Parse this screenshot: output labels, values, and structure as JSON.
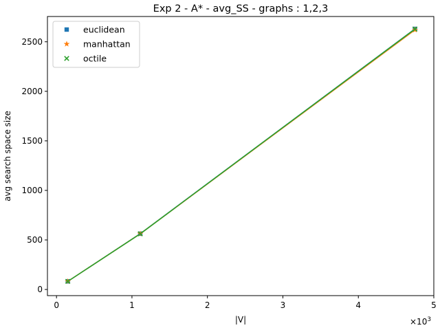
{
  "chart_data": {
    "type": "line",
    "title": "Exp 2 - A* - avg_SS - graphs : 1,2,3",
    "xlabel": "|V|",
    "ylabel": "avg search space size",
    "x_multiplier_label": "×10",
    "x_multiplier_exp": "3",
    "xlim": [
      -0.12,
      5.0
    ],
    "ylim": [
      -62,
      2755
    ],
    "xticks": [
      0,
      1,
      2,
      3,
      4,
      5
    ],
    "yticks": [
      0,
      500,
      1000,
      1500,
      2000,
      2500
    ],
    "grid": false,
    "legend_position": "top-left",
    "series": [
      {
        "name": "euclidean",
        "marker": "square",
        "color": "#1f77b4",
        "x": [
          0.15,
          1.11,
          4.75
        ],
        "y": [
          82,
          563,
          2630
        ]
      },
      {
        "name": "manhattan",
        "marker": "star",
        "color": "#ff7f0e",
        "x": [
          0.15,
          1.11,
          4.75
        ],
        "y": [
          82,
          562,
          2620
        ]
      },
      {
        "name": "octile",
        "marker": "x",
        "color": "#2ca02c",
        "x": [
          0.15,
          1.11,
          4.75
        ],
        "y": [
          82,
          562,
          2628
        ]
      }
    ]
  }
}
